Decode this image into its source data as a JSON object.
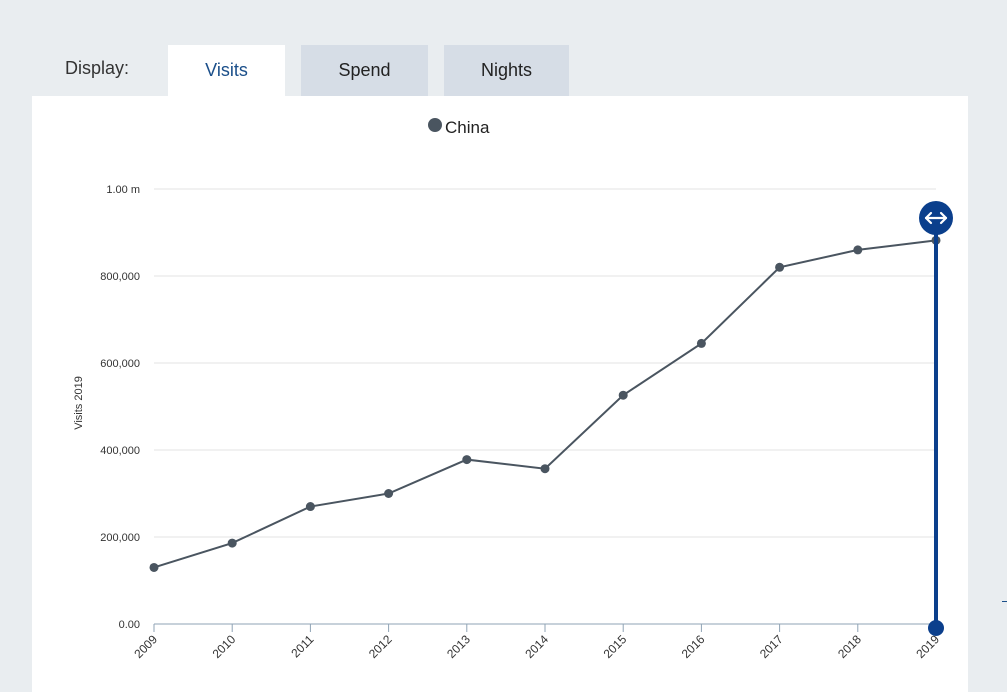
{
  "display": {
    "label": "Display:",
    "tabs": [
      {
        "label": "Visits",
        "active": true
      },
      {
        "label": "Spend",
        "active": false
      },
      {
        "label": "Nights",
        "active": false
      }
    ]
  },
  "chart_data": {
    "type": "line",
    "xlabel": "",
    "ylabel": "Visits 2019",
    "x": [
      "2009",
      "2010",
      "2011",
      "2012",
      "2013",
      "2014",
      "2015",
      "2016",
      "2017",
      "2018",
      "2019"
    ],
    "series": [
      {
        "name": "China",
        "values": [
          130000,
          186000,
          270000,
          300000,
          378000,
          357000,
          526000,
          645000,
          820000,
          860000,
          882000
        ]
      }
    ],
    "ylim": [
      0,
      1000000
    ],
    "yticks": [
      0,
      200000,
      400000,
      600000,
      800000,
      1000000
    ],
    "ytick_labels": [
      "0.00",
      "200,000",
      "400,000",
      "600,000",
      "800,000",
      "1.00 m"
    ],
    "grid": true,
    "legend": "top-center",
    "colors": {
      "series": "#4a5560",
      "slider": "#0b3f8c",
      "grid": "#e3e3e3",
      "axis": "#8fa3b5"
    }
  }
}
